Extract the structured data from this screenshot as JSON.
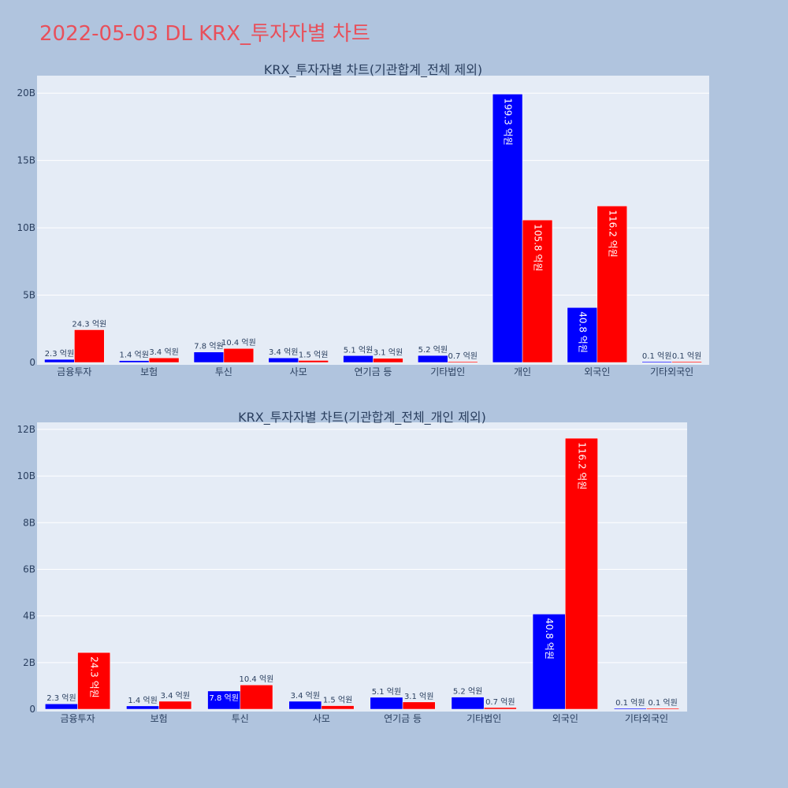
{
  "title": "2022-05-03 DL KRX_투자자별 차트",
  "colors": {
    "background": "#b0c4de",
    "plot_bg": "#e5ecf6",
    "grid": "#ffffff",
    "title": "#e8505b",
    "text": "#2a3f5f",
    "sell": "#0000ff",
    "buy": "#ff0000"
  },
  "chart_data": [
    {
      "type": "bar",
      "title": "KRX_투자자별 차트(기관합계_전체 제외)",
      "categories": [
        "금융투자",
        "보험",
        "투신",
        "사모",
        "연기금 등",
        "기타법인",
        "개인",
        "외국인",
        "기타외국인"
      ],
      "y_ticks": [
        {
          "v": 0,
          "label": "0"
        },
        {
          "v": 5,
          "label": "5B"
        },
        {
          "v": 10,
          "label": "10B"
        },
        {
          "v": 15,
          "label": "15B"
        },
        {
          "v": 20,
          "label": "20B"
        }
      ],
      "ylim": [
        0,
        21.3
      ],
      "unit": "B",
      "series": [
        {
          "color": "#0000ff",
          "values": [
            0.23,
            0.14,
            0.78,
            0.34,
            0.51,
            0.52,
            19.93,
            4.08,
            0.01
          ],
          "labels": [
            "2.3 억원",
            "1.4 억원",
            "7.8 억원",
            "3.4 억원",
            "5.1 억원",
            "5.2 억원",
            "199.3 억원",
            "40.8 억원",
            "0.1 억원"
          ]
        },
        {
          "color": "#ff0000",
          "values": [
            2.43,
            0.34,
            1.04,
            0.15,
            0.31,
            0.07,
            10.58,
            11.62,
            0.01
          ],
          "labels": [
            "24.3 억원",
            "3.4 억원",
            "10.4 억원",
            "1.5 억원",
            "3.1 억원",
            "0.7 억원",
            "105.8 억원",
            "116.2 억원",
            "0.1 억원"
          ]
        }
      ]
    },
    {
      "type": "bar",
      "title": "KRX_투자자별 차트(기관합계_전체_개인 제외)",
      "categories": [
        "금융투자",
        "보험",
        "투신",
        "사모",
        "연기금 등",
        "기타법인",
        "외국인",
        "기타외국인"
      ],
      "y_ticks": [
        {
          "v": 0,
          "label": "0"
        },
        {
          "v": 2,
          "label": "2B"
        },
        {
          "v": 4,
          "label": "4B"
        },
        {
          "v": 6,
          "label": "6B"
        },
        {
          "v": 8,
          "label": "8B"
        },
        {
          "v": 10,
          "label": "10B"
        },
        {
          "v": 12,
          "label": "12B"
        }
      ],
      "ylim": [
        0,
        12.3
      ],
      "unit": "B",
      "series": [
        {
          "color": "#0000ff",
          "values": [
            0.23,
            0.14,
            0.78,
            0.34,
            0.51,
            0.52,
            4.08,
            0.01
          ],
          "labels": [
            "2.3 억원",
            "1.4 억원",
            "7.8 억원",
            "3.4 억원",
            "5.1 억원",
            "5.2 억원",
            "40.8 억원",
            "0.1 억원"
          ]
        },
        {
          "color": "#ff0000",
          "values": [
            2.43,
            0.34,
            1.04,
            0.15,
            0.31,
            0.07,
            11.62,
            0.01
          ],
          "labels": [
            "24.3 억원",
            "3.4 억원",
            "10.4 억원",
            "1.5 억원",
            "3.1 억원",
            "0.7 억원",
            "116.2 억원",
            "0.1 억원"
          ]
        }
      ]
    }
  ]
}
